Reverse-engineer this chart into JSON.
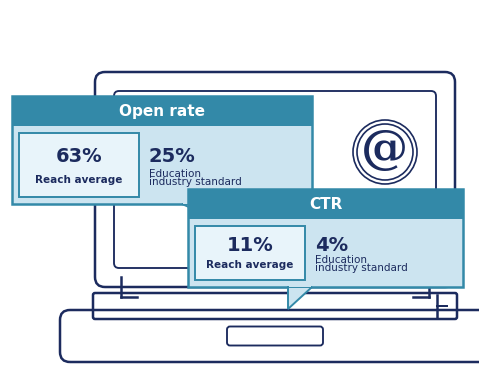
{
  "bg_color": "#ffffff",
  "laptop_color": "#1c2b5e",
  "box1_title": "Open rate",
  "box1_metric1": "63%",
  "box1_label1": "Reach average",
  "box1_metric2": "25%",
  "box1_label2_line1": "Education",
  "box1_label2_line2": "industry standard",
  "box2_title": "CTR",
  "box2_metric1": "11%",
  "box2_label1": "Reach average",
  "box2_metric2": "4%",
  "box2_label2_line1": "Education",
  "box2_label2_line2": "industry standard",
  "header_color": "#3389a8",
  "body_color": "#cce4f0",
  "inner_box_color": "#e8f4fa",
  "text_dark": "#1c2b5e",
  "text_white": "#ffffff"
}
